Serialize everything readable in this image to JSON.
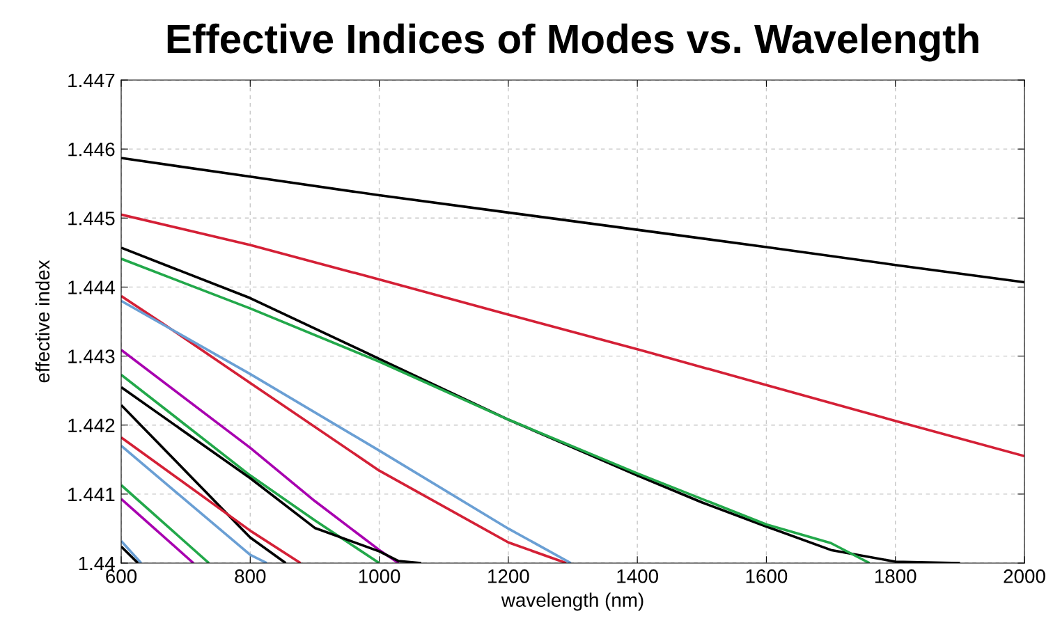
{
  "chart_data": {
    "type": "line",
    "title": "Effective Indices of Modes vs. Wavelength",
    "xlabel": "wavelength (nm)",
    "ylabel": "effective index",
    "xlim": [
      600,
      2000
    ],
    "xticks": [
      600,
      800,
      1000,
      1200,
      1400,
      1600,
      1800,
      2000
    ],
    "ylim": [
      1.44,
      1.447
    ],
    "yticks": [
      {
        "value": 1.44,
        "label": "1.44"
      },
      1.441,
      1.442,
      1.443,
      1.444,
      1.445,
      1.446,
      1.447
    ],
    "grid": true,
    "marker": "none",
    "line_style": "solid",
    "series": [
      {
        "color": "#000000",
        "x": [
          600,
          800,
          1000,
          1200,
          1400,
          1600,
          1800,
          2000
        ],
        "values": [
          1.44587,
          1.4456,
          1.44533,
          1.44508,
          1.44483,
          1.44458,
          1.44432,
          1.44407
        ]
      },
      {
        "color": "#d42036",
        "x": [
          600,
          800,
          1000,
          1200,
          1400,
          1600,
          1800,
          2000
        ],
        "values": [
          1.44505,
          1.44461,
          1.44411,
          1.4436,
          1.4431,
          1.44258,
          1.44206,
          1.44155
        ]
      },
      {
        "color": "#000000",
        "x": [
          600,
          800,
          1000,
          1200,
          1400,
          1500,
          1600,
          1700,
          1800,
          1900
        ],
        "values": [
          1.44457,
          1.44384,
          1.44296,
          1.44208,
          1.44127,
          1.44088,
          1.44053,
          1.44019,
          1.44002,
          1.44
        ]
      },
      {
        "color": "#22a84a",
        "x": [
          600,
          800,
          1000,
          1200,
          1400,
          1600,
          1700,
          1760
        ],
        "values": [
          1.44441,
          1.44369,
          1.44292,
          1.44208,
          1.4413,
          1.44056,
          1.44029,
          1.44
        ]
      },
      {
        "color": "#d42036",
        "x": [
          600,
          668,
          800,
          1000,
          1200,
          1290
        ],
        "values": [
          1.44387,
          1.44345,
          1.44261,
          1.44134,
          1.4403,
          1.44
        ]
      },
      {
        "color": "#6a9fd4",
        "x": [
          600,
          800,
          1000,
          1200,
          1297
        ],
        "values": [
          1.4438,
          1.44274,
          1.44163,
          1.4405,
          1.44
        ]
      },
      {
        "color": "#a800b0",
        "x": [
          600,
          800,
          900,
          1000,
          1030
        ],
        "values": [
          1.44309,
          1.44167,
          1.4409,
          1.44019,
          1.44
        ]
      },
      {
        "color": "#22a84a",
        "x": [
          600,
          800,
          900,
          1000
        ],
        "values": [
          1.44273,
          1.44127,
          1.44062,
          1.44
        ]
      },
      {
        "color": "#000000",
        "x": [
          600,
          800,
          900,
          1000,
          1030,
          1065
        ],
        "values": [
          1.44255,
          1.44123,
          1.44051,
          1.44017,
          1.44003,
          1.44
        ]
      },
      {
        "color": "#000000",
        "x": [
          600,
          800,
          855
        ],
        "values": [
          1.44229,
          1.44037,
          1.44
        ]
      },
      {
        "color": "#d42036",
        "x": [
          600,
          800,
          878
        ],
        "values": [
          1.44182,
          1.44047,
          1.44
        ]
      },
      {
        "color": "#6a9fd4",
        "x": [
          600,
          800,
          826
        ],
        "values": [
          1.4417,
          1.44012,
          1.44
        ]
      },
      {
        "color": "#22a84a",
        "x": [
          600,
          736
        ],
        "values": [
          1.44113,
          1.44
        ]
      },
      {
        "color": "#a800b0",
        "x": [
          600,
          712
        ],
        "values": [
          1.44093,
          1.44
        ]
      },
      {
        "color": "#6a9fd4",
        "x": [
          600,
          631
        ],
        "values": [
          1.44032,
          1.44
        ]
      },
      {
        "color": "#000000",
        "x": [
          600,
          626
        ],
        "values": [
          1.44024,
          1.44
        ]
      }
    ]
  }
}
